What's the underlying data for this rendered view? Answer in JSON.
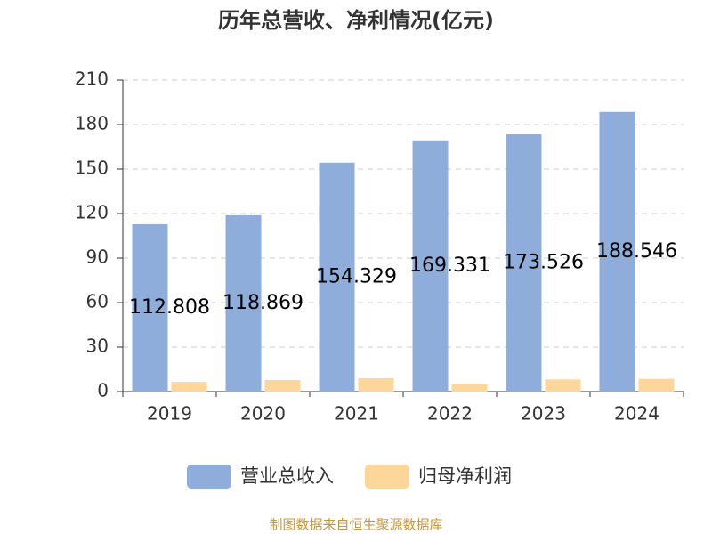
{
  "chart_data": {
    "type": "bar",
    "title": "历年总营收、净利情况(亿元)",
    "categories": [
      "2019",
      "2020",
      "2021",
      "2022",
      "2023",
      "2024"
    ],
    "series": [
      {
        "name": "营业总收入",
        "color": "#8eaddb",
        "values": [
          112.808,
          118.869,
          154.329,
          169.331,
          173.526,
          188.546
        ],
        "show_labels": true
      },
      {
        "name": "归母净利润",
        "color": "#fdd79a",
        "values": [
          6.5,
          7.8,
          9.0,
          5.0,
          8.2,
          8.6
        ]
      }
    ],
    "ylim": [
      0,
      210
    ],
    "yticks": [
      0,
      30,
      60,
      90,
      120,
      150,
      180,
      210
    ],
    "grid": true,
    "footer": "制图数据来自恒生聚源数据库"
  }
}
